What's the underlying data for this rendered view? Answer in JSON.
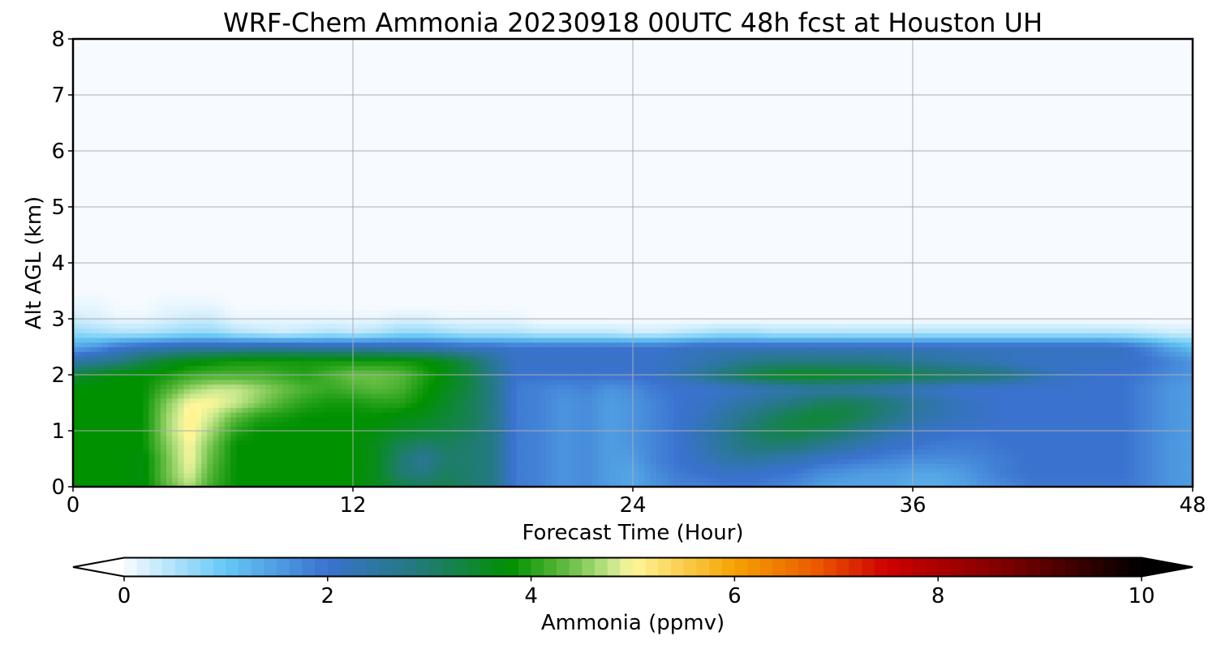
{
  "chart_data": {
    "type": "heatmap",
    "title": "WRF-Chem Ammonia  20230918 00UTC 48h fcst at Houston UH",
    "xlabel": "Forecast Time (Hour)",
    "ylabel": "Alt AGL (km)",
    "xlim": [
      0,
      48
    ],
    "ylim": [
      0,
      8
    ],
    "x_ticks": [
      "0",
      "12",
      "24",
      "36",
      "48"
    ],
    "y_ticks": [
      "0",
      "1",
      "2",
      "3",
      "4",
      "5",
      "6",
      "7",
      "8"
    ],
    "grid": true,
    "value_unit": "ppmv",
    "x": [
      0,
      1,
      2,
      3,
      4,
      5,
      6,
      7,
      8,
      9,
      10,
      11,
      12,
      13,
      14,
      15,
      16,
      17,
      18,
      19,
      20,
      21,
      22,
      23,
      24,
      25,
      26,
      27,
      28,
      29,
      30,
      31,
      32,
      33,
      34,
      35,
      36,
      37,
      38,
      39,
      40,
      41,
      42,
      43,
      44,
      45,
      46,
      47,
      48
    ],
    "y": [
      0,
      0.25,
      0.5,
      0.75,
      1.0,
      1.25,
      1.5,
      1.75,
      2.0,
      2.25,
      2.5,
      2.75,
      3.0,
      3.25,
      3.5,
      4.0,
      8.0
    ],
    "z": [
      [
        3.8,
        3.8,
        3.8,
        3.7,
        4.3,
        4.7,
        4.1,
        3.8,
        3.8,
        3.8,
        3.8,
        3.8,
        3.8,
        3.6,
        3.3,
        3.2,
        3.2,
        3.0,
        2.8,
        1.9,
        1.8,
        1.6,
        1.7,
        1.5,
        1.4,
        1.6,
        1.8,
        1.8,
        1.9,
        1.9,
        1.8,
        1.7,
        1.5,
        1.4,
        1.4,
        1.4,
        1.3,
        1.3,
        1.4,
        1.6,
        1.7,
        1.9,
        1.9,
        1.9,
        1.9,
        1.9,
        1.8,
        1.6,
        1.5
      ],
      [
        3.8,
        3.8,
        3.8,
        3.7,
        4.4,
        4.9,
        4.2,
        3.8,
        3.8,
        3.8,
        3.8,
        3.8,
        3.8,
        3.6,
        3.0,
        2.8,
        3.1,
        3.0,
        2.8,
        1.9,
        1.8,
        1.6,
        1.7,
        1.5,
        1.4,
        1.7,
        1.9,
        2.0,
        2.1,
        2.1,
        2.0,
        1.9,
        1.7,
        1.6,
        1.5,
        1.5,
        1.4,
        1.4,
        1.5,
        1.7,
        1.9,
        2.0,
        2.0,
        2.0,
        2.0,
        2.0,
        1.8,
        1.6,
        1.5
      ],
      [
        3.8,
        3.8,
        3.8,
        3.7,
        4.4,
        5.0,
        4.3,
        3.8,
        3.8,
        3.8,
        3.8,
        3.8,
        3.8,
        3.6,
        3.0,
        2.6,
        3.0,
        3.0,
        2.8,
        1.9,
        1.8,
        1.6,
        1.7,
        1.5,
        1.5,
        1.8,
        2.0,
        2.2,
        2.4,
        2.5,
        2.4,
        2.3,
        2.1,
        2.0,
        1.9,
        1.8,
        1.7,
        1.7,
        1.7,
        1.8,
        1.9,
        2.0,
        2.0,
        2.0,
        2.0,
        2.0,
        1.8,
        1.6,
        1.5
      ],
      [
        3.8,
        3.8,
        3.8,
        3.8,
        4.5,
        5.0,
        4.4,
        3.8,
        3.8,
        3.8,
        3.8,
        3.8,
        3.8,
        3.6,
        3.2,
        3.0,
        3.1,
        3.0,
        2.8,
        1.9,
        1.8,
        1.6,
        1.7,
        1.5,
        1.6,
        1.8,
        2.0,
        2.3,
        2.6,
        2.9,
        3.0,
        2.9,
        2.7,
        2.5,
        2.3,
        2.1,
        2.0,
        1.9,
        1.9,
        1.9,
        2.0,
        2.0,
        2.0,
        2.0,
        2.0,
        2.0,
        1.8,
        1.6,
        1.5
      ],
      [
        3.8,
        3.8,
        3.8,
        3.8,
        4.6,
        5.1,
        4.6,
        4.0,
        3.8,
        3.8,
        3.8,
        3.8,
        3.8,
        3.7,
        3.5,
        3.4,
        3.3,
        3.1,
        2.8,
        1.9,
        1.8,
        1.6,
        1.7,
        1.5,
        1.6,
        1.8,
        2.0,
        2.3,
        2.6,
        3.0,
        3.2,
        3.3,
        3.2,
        3.0,
        2.7,
        2.4,
        2.2,
        2.1,
        2.0,
        2.0,
        2.0,
        2.0,
        2.0,
        2.0,
        2.0,
        2.0,
        1.8,
        1.6,
        1.5
      ],
      [
        3.8,
        3.8,
        3.8,
        3.8,
        4.6,
        5.1,
        4.8,
        4.3,
        4.0,
        3.9,
        3.8,
        3.8,
        3.8,
        3.8,
        3.7,
        3.6,
        3.4,
        3.2,
        2.8,
        1.9,
        1.8,
        1.6,
        1.7,
        1.5,
        1.6,
        1.8,
        2.0,
        2.2,
        2.5,
        2.8,
        3.1,
        3.3,
        3.4,
        3.3,
        3.1,
        2.8,
        2.5,
        2.3,
        2.2,
        2.1,
        2.0,
        2.0,
        2.0,
        2.0,
        2.0,
        2.0,
        1.8,
        1.6,
        1.5
      ],
      [
        3.8,
        3.8,
        3.8,
        3.8,
        4.5,
        5.0,
        5.0,
        4.8,
        4.5,
        4.2,
        4.0,
        3.9,
        3.9,
        4.0,
        4.0,
        3.8,
        3.5,
        3.2,
        2.8,
        1.9,
        1.8,
        1.6,
        1.7,
        1.5,
        1.6,
        1.8,
        2.0,
        2.1,
        2.3,
        2.5,
        2.7,
        2.9,
        3.1,
        3.2,
        3.1,
        2.9,
        2.6,
        2.4,
        2.2,
        2.1,
        2.0,
        2.0,
        2.0,
        2.0,
        2.0,
        2.0,
        1.8,
        1.6,
        1.5
      ],
      [
        3.8,
        3.8,
        3.8,
        3.8,
        4.2,
        4.6,
        4.8,
        4.8,
        4.6,
        4.4,
        4.2,
        4.1,
        4.2,
        4.3,
        4.2,
        3.9,
        3.6,
        3.3,
        2.8,
        1.9,
        1.8,
        1.7,
        1.8,
        1.6,
        1.7,
        1.9,
        2.0,
        2.0,
        2.1,
        2.2,
        2.3,
        2.4,
        2.5,
        2.5,
        2.4,
        2.3,
        2.2,
        2.1,
        2.0,
        2.0,
        2.0,
        2.0,
        2.0,
        2.0,
        2.0,
        2.0,
        1.8,
        1.6,
        1.5
      ],
      [
        3.4,
        3.6,
        3.8,
        3.8,
        3.9,
        4.1,
        4.2,
        4.2,
        4.2,
        4.1,
        4.0,
        4.2,
        4.4,
        4.4,
        4.3,
        4.0,
        3.7,
        3.3,
        2.7,
        2.0,
        2.0,
        2.0,
        2.0,
        2.0,
        2.0,
        2.1,
        2.3,
        2.6,
        3.0,
        3.3,
        3.5,
        3.6,
        3.6,
        3.5,
        3.5,
        3.4,
        3.3,
        3.2,
        3.1,
        3.0,
        2.8,
        2.5,
        2.2,
        2.1,
        2.0,
        2.0,
        1.9,
        1.7,
        1.6
      ],
      [
        2.4,
        2.6,
        2.8,
        3.2,
        3.5,
        3.7,
        3.8,
        3.9,
        3.9,
        3.9,
        3.9,
        3.9,
        3.9,
        3.9,
        3.9,
        3.8,
        3.6,
        3.2,
        2.6,
        2.1,
        2.1,
        2.1,
        2.1,
        2.1,
        2.1,
        2.1,
        2.2,
        2.3,
        2.5,
        2.7,
        2.8,
        2.8,
        2.8,
        2.8,
        2.8,
        2.7,
        2.6,
        2.5,
        2.4,
        2.3,
        2.2,
        2.1,
        2.1,
        2.1,
        2.1,
        2.1,
        2.0,
        1.8,
        1.6
      ],
      [
        1.4,
        1.6,
        2.0,
        2.2,
        2.3,
        2.4,
        2.4,
        2.4,
        2.5,
        2.5,
        2.4,
        2.4,
        2.4,
        2.4,
        2.3,
        2.3,
        2.2,
        2.1,
        2.1,
        2.0,
        2.0,
        2.0,
        2.0,
        2.0,
        2.0,
        2.0,
        2.1,
        2.2,
        2.2,
        2.2,
        2.2,
        2.2,
        2.2,
        2.2,
        2.2,
        2.2,
        2.2,
        2.2,
        2.2,
        2.2,
        2.2,
        2.2,
        2.2,
        2.2,
        2.2,
        2.1,
        1.8,
        1.4,
        1.1
      ],
      [
        0.7,
        0.6,
        0.5,
        0.5,
        0.6,
        0.7,
        0.7,
        0.5,
        0.4,
        0.3,
        0.4,
        0.5,
        0.4,
        0.5,
        0.7,
        0.7,
        0.6,
        0.5,
        0.5,
        0.5,
        0.4,
        0.4,
        0.4,
        0.4,
        0.3,
        0.3,
        0.4,
        0.5,
        0.6,
        0.6,
        0.5,
        0.5,
        0.5,
        0.5,
        0.5,
        0.5,
        0.5,
        0.5,
        0.5,
        0.5,
        0.5,
        0.5,
        0.5,
        0.5,
        0.5,
        0.5,
        0.4,
        0.3,
        0.3
      ],
      [
        0.3,
        0.2,
        0.1,
        0.1,
        0.2,
        0.3,
        0.3,
        0.1,
        0.1,
        0.1,
        0.1,
        0.1,
        0.1,
        0.1,
        0.2,
        0.2,
        0.1,
        0.1,
        0.1,
        0.1,
        0.0,
        0.0,
        0.0,
        0.0,
        0.0,
        0.0,
        0.0,
        0.0,
        0.0,
        0.0,
        0.0,
        0.0,
        0.0,
        0.0,
        0.0,
        0.0,
        0.0,
        0.0,
        0.0,
        0.0,
        0.0,
        0.0,
        0.0,
        0.0,
        0.0,
        0.0,
        0.0,
        0.0,
        0.0
      ],
      [
        0.1,
        0.1,
        0.0,
        0.0,
        0.1,
        0.1,
        0.1,
        0.0,
        0.0,
        0.0,
        0.0,
        0.0,
        0.0,
        0.0,
        0.0,
        0.0,
        0.0,
        0.0,
        0.0,
        0.0,
        0.0,
        0.0,
        0.0,
        0.0,
        0.0,
        0.0,
        0.0,
        0.0,
        0.0,
        0.0,
        0.0,
        0.0,
        0.0,
        0.0,
        0.0,
        0.0,
        0.0,
        0.0,
        0.0,
        0.0,
        0.0,
        0.0,
        0.0,
        0.0,
        0.0,
        0.0,
        0.0,
        0.0,
        0.0
      ],
      [
        0.0,
        0.0,
        0.0,
        0.0,
        0.0,
        0.0,
        0.0,
        0.0,
        0.0,
        0.0,
        0.0,
        0.0,
        0.0,
        0.0,
        0.0,
        0.0,
        0.0,
        0.0,
        0.0,
        0.0,
        0.0,
        0.0,
        0.0,
        0.0,
        0.0,
        0.0,
        0.0,
        0.0,
        0.0,
        0.0,
        0.0,
        0.0,
        0.0,
        0.0,
        0.0,
        0.0,
        0.0,
        0.0,
        0.0,
        0.0,
        0.0,
        0.0,
        0.0,
        0.0,
        0.0,
        0.0,
        0.0,
        0.0,
        0.0
      ],
      [
        0.0,
        0.0,
        0.0,
        0.0,
        0.0,
        0.0,
        0.0,
        0.0,
        0.0,
        0.0,
        0.0,
        0.0,
        0.0,
        0.0,
        0.0,
        0.0,
        0.0,
        0.0,
        0.0,
        0.0,
        0.0,
        0.0,
        0.0,
        0.0,
        0.0,
        0.0,
        0.0,
        0.0,
        0.0,
        0.0,
        0.0,
        0.0,
        0.0,
        0.0,
        0.0,
        0.0,
        0.0,
        0.0,
        0.0,
        0.0,
        0.0,
        0.0,
        0.0,
        0.0,
        0.0,
        0.0,
        0.0,
        0.0,
        0.0
      ],
      [
        0.0,
        0.0,
        0.0,
        0.0,
        0.0,
        0.0,
        0.0,
        0.0,
        0.0,
        0.0,
        0.0,
        0.0,
        0.0,
        0.0,
        0.0,
        0.0,
        0.0,
        0.0,
        0.0,
        0.0,
        0.0,
        0.0,
        0.0,
        0.0,
        0.0,
        0.0,
        0.0,
        0.0,
        0.0,
        0.0,
        0.0,
        0.0,
        0.0,
        0.0,
        0.0,
        0.0,
        0.0,
        0.0,
        0.0,
        0.0,
        0.0,
        0.0,
        0.0,
        0.0,
        0.0,
        0.0,
        0.0,
        0.0,
        0.0
      ]
    ],
    "colorbar": {
      "label": "Ammonia  (ppmv)",
      "range": [
        0,
        10
      ],
      "ticks": [
        "0",
        "2",
        "4",
        "6",
        "8",
        "10"
      ],
      "extend": "both",
      "color_stops": [
        {
          "v": 0.0,
          "c": "#f7fbff"
        },
        {
          "v": 1.0,
          "c": "#66c8f5"
        },
        {
          "v": 2.0,
          "c": "#3a72cf"
        },
        {
          "v": 2.9,
          "c": "#227a7a"
        },
        {
          "v": 3.8,
          "c": "#009100"
        },
        {
          "v": 4.4,
          "c": "#6cc048"
        },
        {
          "v": 4.8,
          "c": "#c9e88e"
        },
        {
          "v": 5.0,
          "c": "#fff79a"
        },
        {
          "v": 6.0,
          "c": "#f5a300"
        },
        {
          "v": 6.8,
          "c": "#eb5a00"
        },
        {
          "v": 7.5,
          "c": "#cf0000"
        },
        {
          "v": 8.7,
          "c": "#7a0000"
        },
        {
          "v": 10.0,
          "c": "#000000"
        }
      ],
      "under_color": "#ffffff",
      "over_color": "#000000"
    }
  }
}
